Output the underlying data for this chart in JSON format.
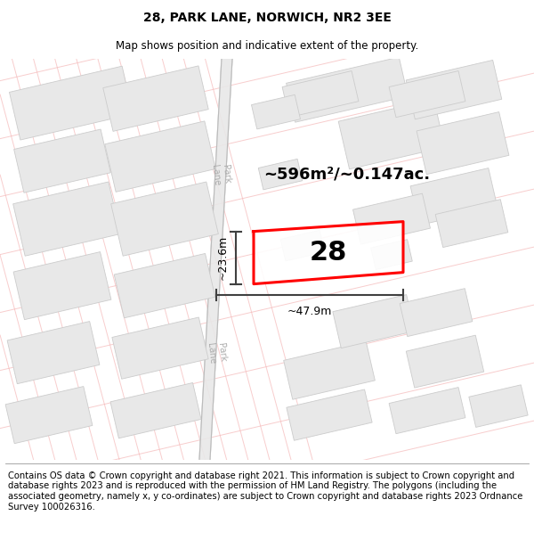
{
  "title": "28, PARK LANE, NORWICH, NR2 3EE",
  "subtitle": "Map shows position and indicative extent of the property.",
  "footer": "Contains OS data © Crown copyright and database right 2021. This information is subject to Crown copyright and database rights 2023 and is reproduced with the permission of HM Land Registry. The polygons (including the associated geometry, namely x, y co-ordinates) are subject to Crown copyright and database rights 2023 Ordnance Survey 100026316.",
  "area_label": "~596m²/~0.147ac.",
  "width_label": "~47.9m",
  "height_label": "~23.6m",
  "number_label": "28",
  "bg_color": "#ffffff",
  "map_bg": "#ffffff",
  "road_strip_color": "#e0e0e0",
  "building_fill": "#e8e8e8",
  "building_edge": "#c8c8c8",
  "plot_color": "#ff0000",
  "plot_fill": "#ffffff",
  "road_line_color": "#f5b8b8",
  "dim_line_color": "#404040",
  "title_fontsize": 10,
  "subtitle_fontsize": 8.5,
  "footer_fontsize": 7.2,
  "label_fontsize": 13,
  "dim_fontsize": 9,
  "number_fontsize": 22,
  "road_label_color": "#aaaaaa",
  "road_label_size": 7
}
